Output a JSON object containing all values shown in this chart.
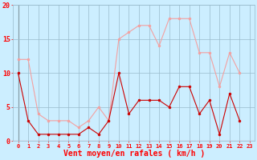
{
  "hours": [
    0,
    1,
    2,
    3,
    4,
    5,
    6,
    7,
    8,
    9,
    10,
    11,
    12,
    13,
    14,
    15,
    16,
    17,
    18,
    19,
    20,
    21,
    22,
    23
  ],
  "wind_avg": [
    10,
    3,
    1,
    1,
    1,
    1,
    1,
    2,
    1,
    3,
    10,
    4,
    6,
    6,
    6,
    5,
    8,
    8,
    4,
    6,
    1,
    7,
    3,
    null
  ],
  "wind_gust": [
    12,
    12,
    4,
    3,
    3,
    3,
    2,
    3,
    5,
    3,
    15,
    16,
    17,
    17,
    14,
    18,
    18,
    18,
    13,
    13,
    8,
    13,
    10,
    null
  ],
  "avg_color": "#cc0000",
  "gust_color": "#f4a0a0",
  "bg_color": "#cceeff",
  "grid_color": "#99bbcc",
  "xlabel": "Vent moyen/en rafales ( km/h )",
  "ylim": [
    0,
    20
  ],
  "xlim": [
    -0.5,
    23.5
  ],
  "yticks": [
    0,
    5,
    10,
    15,
    20
  ],
  "xlabel_fontsize": 7,
  "tick_fontsize": 5,
  "linewidth": 0.8,
  "markersize": 2.0
}
